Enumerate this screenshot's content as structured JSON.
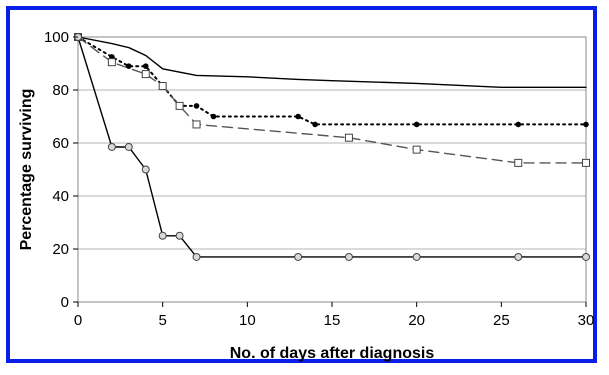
{
  "chart_data": {
    "type": "line",
    "xlabel": "No. of days after diagnosis",
    "ylabel": "Percentage surviving",
    "xlim": [
      0,
      30
    ],
    "ylim": [
      0,
      100
    ],
    "x_ticks": [
      0,
      5,
      10,
      15,
      20,
      25,
      30
    ],
    "y_ticks": [
      0,
      20,
      40,
      60,
      80,
      100
    ],
    "grid": "horizontal",
    "legend": "none",
    "frame_color": "#0a1ee8",
    "plot_background": "#ffffff",
    "gridline_color": "#b4b4b4",
    "series": [
      {
        "style": "solid",
        "marker": "none",
        "color": "#000000",
        "points": [
          [
            0,
            100
          ],
          [
            2,
            97.5
          ],
          [
            3,
            96
          ],
          [
            4,
            93
          ],
          [
            5,
            88
          ],
          [
            7,
            85.5
          ],
          [
            10,
            85
          ],
          [
            13,
            84
          ],
          [
            15,
            83.5
          ],
          [
            20,
            82.5
          ],
          [
            25,
            81
          ],
          [
            30,
            81
          ]
        ]
      },
      {
        "style": "dotted",
        "marker": "filled-circle",
        "color": "#000000",
        "points": [
          [
            0,
            100
          ],
          [
            2,
            92.5
          ],
          [
            3,
            89
          ],
          [
            4,
            89
          ],
          [
            5,
            81.5
          ],
          [
            6,
            74
          ],
          [
            7,
            74
          ],
          [
            8,
            70
          ],
          [
            13,
            70
          ],
          [
            14,
            67
          ],
          [
            20,
            67
          ],
          [
            26,
            67
          ],
          [
            30,
            67
          ]
        ]
      },
      {
        "style": "dashed",
        "marker": "open-square",
        "color": "#555555",
        "points": [
          [
            0,
            100
          ],
          [
            2,
            90.5
          ],
          [
            4,
            86
          ],
          [
            5,
            81.5
          ],
          [
            6,
            74
          ],
          [
            7,
            67
          ],
          [
            16,
            62
          ],
          [
            20,
            57.5
          ],
          [
            26,
            52.5
          ],
          [
            30,
            52.5
          ]
        ]
      },
      {
        "style": "solid",
        "marker": "open-circle",
        "color": "#000000",
        "points": [
          [
            0,
            100
          ],
          [
            2,
            58.5
          ],
          [
            3,
            58.5
          ],
          [
            4,
            50
          ],
          [
            5,
            25
          ],
          [
            6,
            25
          ],
          [
            7,
            17
          ],
          [
            13,
            17
          ],
          [
            16,
            17
          ],
          [
            20,
            17
          ],
          [
            26,
            17
          ],
          [
            30,
            17
          ]
        ]
      }
    ]
  }
}
